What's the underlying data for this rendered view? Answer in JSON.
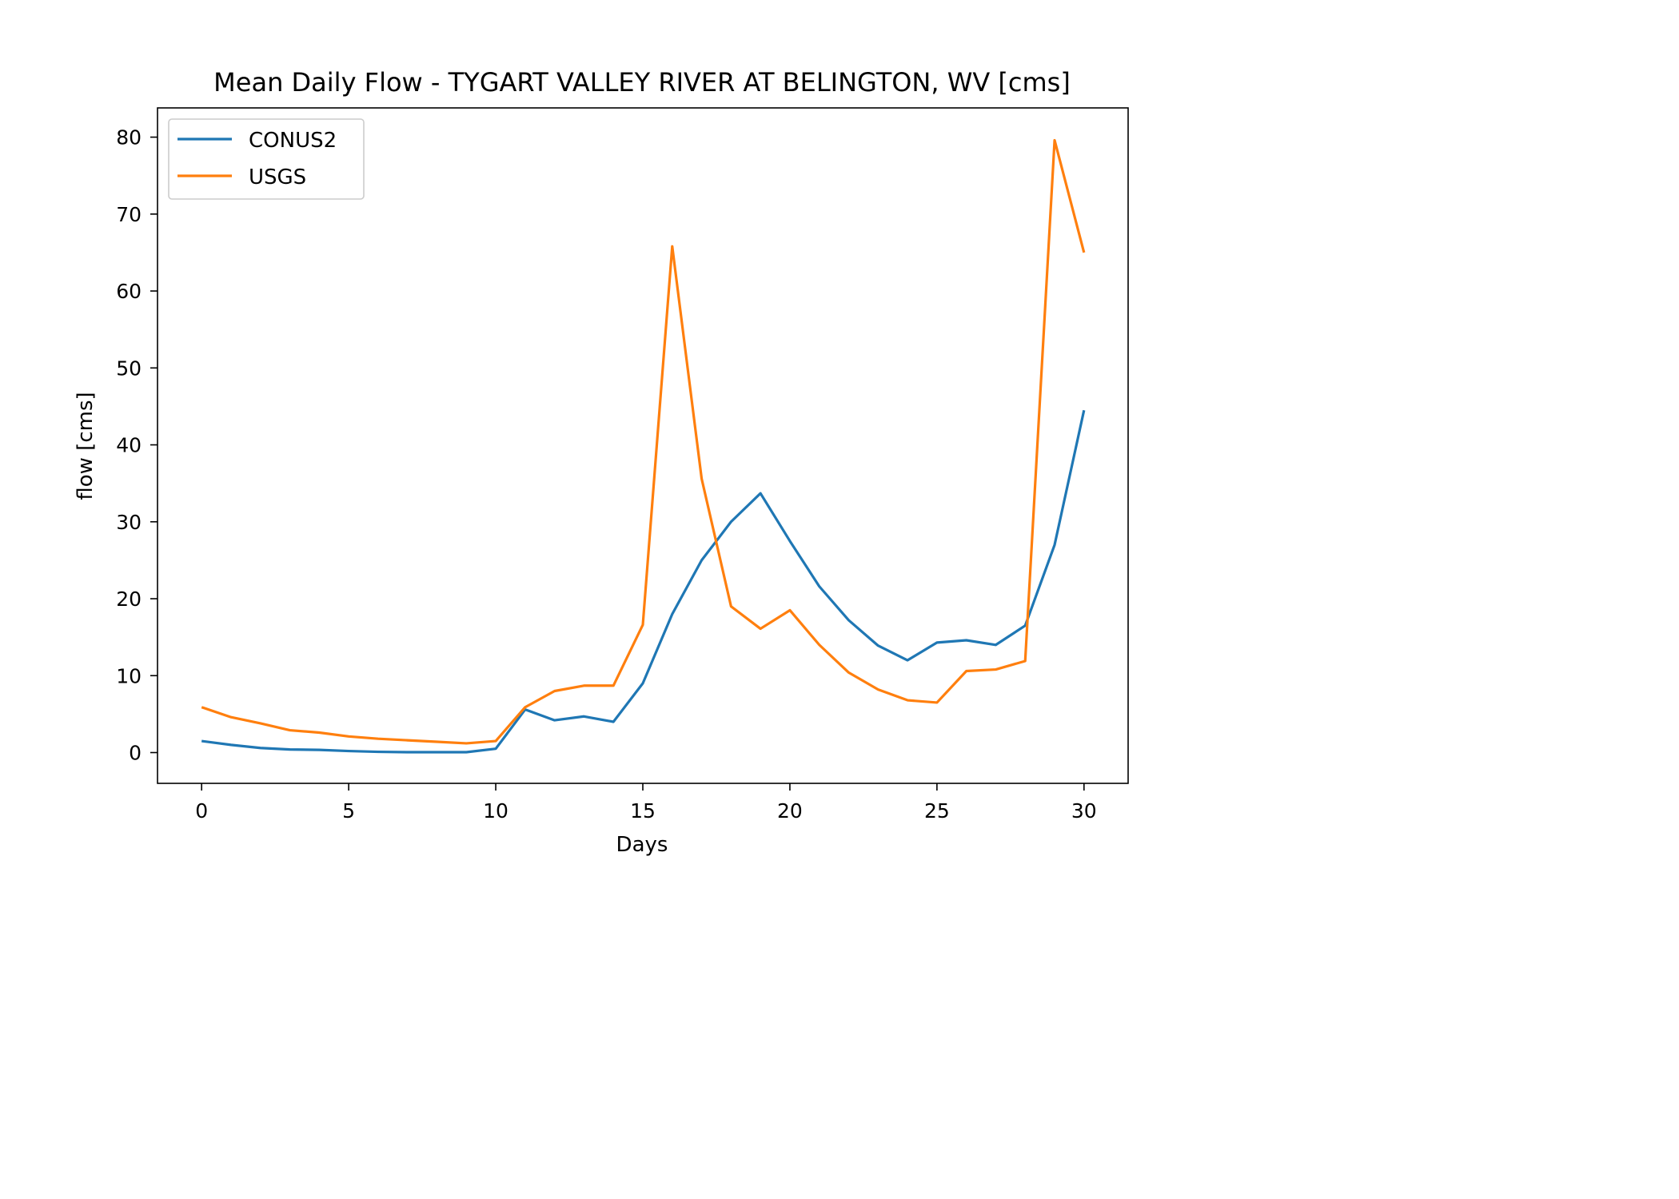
{
  "chart_data": {
    "type": "line",
    "title": "Mean Daily Flow - TYGART VALLEY RIVER AT BELINGTON, WV [cms]",
    "xlabel": "Days",
    "ylabel": "flow [cms]",
    "xlim": [
      -1.5,
      31.5
    ],
    "ylim": [
      -4,
      83.8
    ],
    "xticks": [
      0,
      5,
      10,
      15,
      20,
      25,
      30
    ],
    "yticks": [
      0,
      10,
      20,
      30,
      40,
      50,
      60,
      70,
      80
    ],
    "grid": false,
    "legend_position": "upper-left",
    "x": [
      0,
      1,
      2,
      3,
      4,
      5,
      6,
      7,
      8,
      9,
      10,
      11,
      12,
      13,
      14,
      15,
      16,
      17,
      18,
      19,
      20,
      21,
      22,
      23,
      24,
      25,
      26,
      27,
      28,
      29,
      30
    ],
    "series": [
      {
        "name": "CONUS2",
        "color": "#1f77b4",
        "values": [
          1.5,
          1.0,
          0.6,
          0.4,
          0.35,
          0.2,
          0.1,
          0.05,
          0.05,
          0.05,
          0.5,
          5.6,
          4.2,
          4.7,
          4.0,
          9.0,
          18.0,
          25.0,
          30.0,
          33.7,
          27.5,
          21.6,
          17.2,
          13.9,
          12.0,
          14.3,
          14.6,
          14.0,
          16.5,
          27.0,
          44.5
        ]
      },
      {
        "name": "USGS",
        "color": "#ff7f0e",
        "values": [
          5.9,
          4.6,
          3.8,
          2.9,
          2.6,
          2.1,
          1.8,
          1.6,
          1.4,
          1.2,
          1.5,
          5.9,
          8.0,
          8.7,
          8.7,
          16.6,
          65.8,
          35.6,
          19.0,
          16.1,
          18.5,
          14.0,
          10.4,
          8.2,
          6.8,
          6.5,
          10.6,
          10.8,
          11.9,
          79.6,
          65.0
        ]
      }
    ]
  }
}
